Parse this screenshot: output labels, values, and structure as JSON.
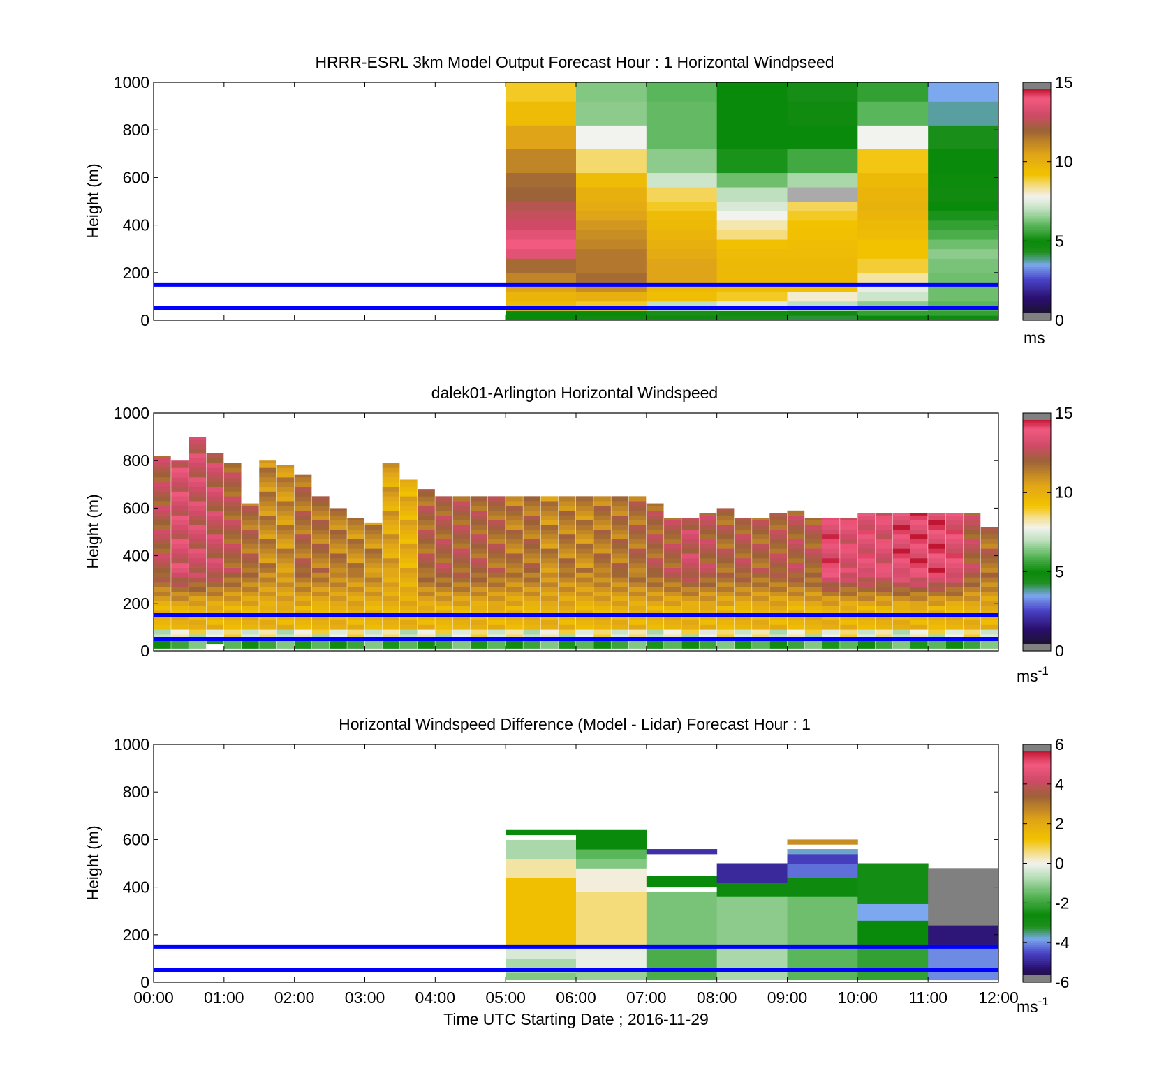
{
  "figure": {
    "xlabel": "Time UTC  Starting Date ; 2016-11-29",
    "x_ticks": [
      "00:00",
      "01:00",
      "02:00",
      "03:00",
      "04:00",
      "05:00",
      "06:00",
      "07:00",
      "08:00",
      "09:00",
      "10:00",
      "11:00",
      "12:00"
    ],
    "y_ticks": [
      "0",
      "200",
      "400",
      "600",
      "800",
      "1000"
    ],
    "ylabel": "Height (m)"
  },
  "colors": {
    "blue_line": "#0000ff",
    "speed_stops": [
      [
        0,
        "#151515"
      ],
      [
        1.4,
        "#2a0f6e"
      ],
      [
        2.6,
        "#4a44c8"
      ],
      [
        3.5,
        "#7ca8ef"
      ],
      [
        4.3,
        "#1f8f1f"
      ],
      [
        5.0,
        "#0a8a0a"
      ],
      [
        6.0,
        "#5ab65a"
      ],
      [
        7.0,
        "#bfe0bf"
      ],
      [
        7.8,
        "#f2f2ee"
      ],
      [
        8.4,
        "#f5e090"
      ],
      [
        9.2,
        "#f2c200"
      ],
      [
        10.5,
        "#e0a418"
      ],
      [
        12.0,
        "#9c6238"
      ],
      [
        13.0,
        "#d04a68"
      ],
      [
        14.0,
        "#f25a80"
      ],
      [
        14.6,
        "#c01430"
      ],
      [
        15,
        "#c01430"
      ]
    ],
    "diff_stops": [
      [
        -6,
        "#151515"
      ],
      [
        -5.3,
        "#2a0f6e"
      ],
      [
        -4.5,
        "#4a44c8"
      ],
      [
        -3.8,
        "#7ca8ef"
      ],
      [
        -3.2,
        "#1f8f1f"
      ],
      [
        -2.6,
        "#0a8a0a"
      ],
      [
        -1.6,
        "#5ab65a"
      ],
      [
        -0.6,
        "#bfe0bf"
      ],
      [
        0,
        "#f2f2ee"
      ],
      [
        0.5,
        "#f5e090"
      ],
      [
        1.2,
        "#f2c200"
      ],
      [
        2.2,
        "#e0a418"
      ],
      [
        3.4,
        "#9c6238"
      ],
      [
        4.2,
        "#d04a68"
      ],
      [
        5.0,
        "#f25a80"
      ],
      [
        5.7,
        "#c01430"
      ],
      [
        6,
        "#c01430"
      ]
    ]
  },
  "chart_data": [
    {
      "type": "heatmap",
      "title": "HRRR-ESRL 3km Model Output   Forecast Hour : 1 Horizontal Windpseed",
      "colorbar_unit": "ms",
      "clim": [
        0,
        15
      ],
      "colorbar_ticks": [
        "0",
        "5",
        "10",
        "15"
      ],
      "ylim": [
        0,
        1000
      ],
      "xlim_hours": [
        0,
        12
      ],
      "reference_lines_m": [
        50,
        150
      ],
      "x_start_hours": [
        5,
        6,
        7,
        8,
        9,
        10,
        11
      ],
      "y_heights_m": [
        0,
        20,
        40,
        80,
        120,
        160,
        200,
        260,
        300,
        340,
        380,
        420,
        460,
        500,
        560,
        620,
        720,
        820,
        920,
        1000
      ],
      "values_by_hour": [
        [
          5.0,
          5.0,
          9.5,
          9.8,
          10.5,
          11.2,
          11.8,
          13.5,
          14.0,
          13.5,
          13.0,
          12.8,
          12.5,
          12.0,
          11.8,
          11.2,
          10.5,
          9.5,
          9.0
        ],
        [
          4.8,
          5.0,
          9.0,
          10.0,
          11.0,
          11.8,
          11.5,
          11.5,
          11.2,
          11.0,
          10.8,
          10.5,
          10.2,
          10.0,
          9.5,
          8.6,
          7.8,
          6.5,
          6.4
        ],
        [
          4.8,
          4.5,
          7.0,
          9.4,
          9.6,
          10.5,
          10.5,
          10.2,
          10.0,
          9.8,
          9.6,
          9.5,
          9.0,
          8.7,
          7.2,
          6.5,
          6.1,
          6.1,
          6.0
        ],
        [
          4.5,
          4.7,
          7.5,
          9.0,
          9.4,
          9.6,
          9.6,
          9.5,
          9.3,
          8.5,
          8.2,
          7.8,
          7.4,
          7.0,
          6.2,
          5.2,
          5.0,
          5.0,
          5.0
        ],
        [
          4.2,
          4.8,
          7.0,
          8.0,
          9.3,
          9.6,
          9.6,
          9.5,
          9.4,
          9.3,
          9.2,
          9.0,
          8.7,
          "missing",
          6.8,
          5.7,
          5.0,
          4.8,
          4.6
        ],
        [
          5.0,
          5.5,
          6.5,
          7.2,
          7.6,
          8.3,
          8.9,
          9.2,
          9.2,
          9.5,
          9.6,
          9.8,
          9.9,
          9.8,
          9.6,
          9.1,
          7.8,
          6.0,
          5.5
        ],
        [
          4.8,
          5.5,
          6.0,
          6.2,
          6.2,
          6.2,
          6.3,
          6.5,
          6.2,
          5.8,
          5.5,
          5.2,
          5.0,
          4.8,
          4.9,
          5.0,
          4.5,
          3.8,
          3.5
        ]
      ]
    },
    {
      "type": "heatmap",
      "title": "dalek01-Arlington  Horizontal Windspeed",
      "colorbar_unit": "ms",
      "colorbar_unit_exponent": "-1",
      "clim": [
        0,
        15
      ],
      "colorbar_ticks": [
        "0",
        "5",
        "10",
        "15"
      ],
      "ylim": [
        0,
        1000
      ],
      "xlim_hours": [
        0,
        12
      ],
      "reference_lines_m": [
        50,
        150
      ],
      "column_width_hours": 0.25,
      "column_starts_hours": [
        0,
        0.25,
        0.5,
        0.75,
        1.0,
        1.25,
        1.5,
        1.75,
        2.0,
        2.25,
        2.5,
        2.75,
        3.0,
        3.25,
        3.5,
        3.75,
        4.0,
        4.25,
        4.5,
        4.75,
        5.0,
        5.25,
        5.5,
        5.75,
        6.0,
        6.25,
        6.5,
        6.75,
        7.0,
        7.25,
        7.5,
        7.75,
        8.0,
        8.25,
        8.5,
        8.75,
        9.0,
        9.25,
        9.5,
        9.75,
        10.0,
        10.25,
        10.5,
        10.75,
        11.0,
        11.25,
        11.5,
        11.75
      ],
      "column_tops_m": [
        820,
        800,
        900,
        830,
        790,
        620,
        800,
        780,
        740,
        650,
        600,
        560,
        540,
        790,
        720,
        680,
        650,
        650,
        650,
        650,
        650,
        650,
        650,
        650,
        650,
        650,
        650,
        650,
        620,
        560,
        560,
        580,
        600,
        560,
        560,
        580,
        590,
        560,
        560,
        560,
        580,
        580,
        580,
        580,
        580,
        580,
        580,
        520
      ],
      "column_bases_m": [
        10,
        10,
        10,
        30,
        10,
        10,
        10,
        10,
        10,
        10,
        10,
        10,
        10,
        10,
        10,
        10,
        10,
        10,
        10,
        10,
        10,
        10,
        10,
        10,
        10,
        10,
        10,
        10,
        10,
        10,
        10,
        10,
        10,
        10,
        10,
        10,
        10,
        10,
        10,
        10,
        10,
        10,
        10,
        10,
        10,
        10,
        10,
        10
      ],
      "column_upper_speed": [
        12.2,
        13.0,
        12.8,
        12.6,
        12.0,
        11.6,
        11.0,
        10.8,
        11.6,
        11.4,
        11.2,
        11.0,
        11.0,
        10.2,
        9.8,
        11.8,
        12.0,
        12.0,
        11.9,
        11.7,
        11.3,
        11.5,
        11.0,
        11.2,
        11.0,
        11.3,
        11.4,
        11.6,
        11.9,
        12.0,
        12.6,
        12.2,
        11.8,
        12.0,
        11.8,
        12.0,
        12.1,
        12.0,
        13.6,
        13.2,
        13.3,
        13.2,
        13.7,
        13.7,
        13.8,
        13.4,
        12.2,
        11.6
      ],
      "profile_note_levels_m": [
        0,
        20,
        40,
        60,
        80,
        100,
        120,
        150,
        200,
        300,
        400,
        500,
        600
      ]
    },
    {
      "type": "heatmap",
      "title": "Horizontal Windspeed Difference (Model - Lidar) Forecast Hour : 1",
      "colorbar_unit": "ms",
      "colorbar_unit_exponent": "-1",
      "clim": [
        -6,
        6
      ],
      "colorbar_ticks": [
        "-6",
        "-4",
        "-2",
        "0",
        "2",
        "4",
        "6"
      ],
      "ylim": [
        0,
        1000
      ],
      "xlim_hours": [
        0,
        12
      ],
      "reference_lines_m": [
        50,
        150
      ],
      "x_start_hours": [
        5,
        6,
        7,
        8,
        9,
        10,
        11
      ],
      "column_tops_m": [
        640,
        640,
        560,
        500,
        600,
        500,
        480
      ],
      "segments_by_hour": [
        [
          [
            10,
            40,
            -1.2
          ],
          [
            40,
            100,
            -0.8
          ],
          [
            100,
            160,
            -0.3
          ],
          [
            160,
            440,
            1.3
          ],
          [
            440,
            520,
            0.4
          ],
          [
            520,
            600,
            -0.8
          ],
          [
            600,
            620,
            "missing"
          ],
          [
            620,
            640,
            -2.6
          ]
        ],
        [
          [
            10,
            60,
            -1.0
          ],
          [
            60,
            160,
            -0.1
          ],
          [
            160,
            380,
            0.6
          ],
          [
            380,
            480,
            0.1
          ],
          [
            480,
            520,
            -1.2
          ],
          [
            520,
            560,
            -1.6
          ],
          [
            560,
            640,
            -2.6
          ]
        ],
        [
          [
            10,
            160,
            -1.8
          ],
          [
            160,
            380,
            -1.3
          ],
          [
            380,
            400,
            "missing"
          ],
          [
            400,
            450,
            -2.6
          ],
          [
            450,
            540,
            "missing"
          ],
          [
            540,
            560,
            -4.8
          ]
        ],
        [
          [
            10,
            160,
            -0.8
          ],
          [
            160,
            360,
            -1.1
          ],
          [
            360,
            420,
            -2.7
          ],
          [
            420,
            500,
            -4.9
          ]
        ],
        [
          [
            10,
            160,
            -1.6
          ],
          [
            160,
            360,
            -1.4
          ],
          [
            360,
            440,
            -2.7
          ],
          [
            440,
            500,
            -4.2
          ],
          [
            500,
            540,
            -4.6
          ],
          [
            540,
            560,
            -3.7
          ],
          [
            580,
            600,
            2.6
          ]
        ],
        [
          [
            10,
            160,
            -2.1
          ],
          [
            160,
            260,
            -2.6
          ],
          [
            260,
            330,
            -3.8
          ],
          [
            330,
            500,
            -2.9
          ]
        ],
        [
          [
            10,
            160,
            -4.0
          ],
          [
            160,
            240,
            -5.2
          ],
          [
            240,
            480,
            "missing"
          ]
        ]
      ]
    }
  ]
}
